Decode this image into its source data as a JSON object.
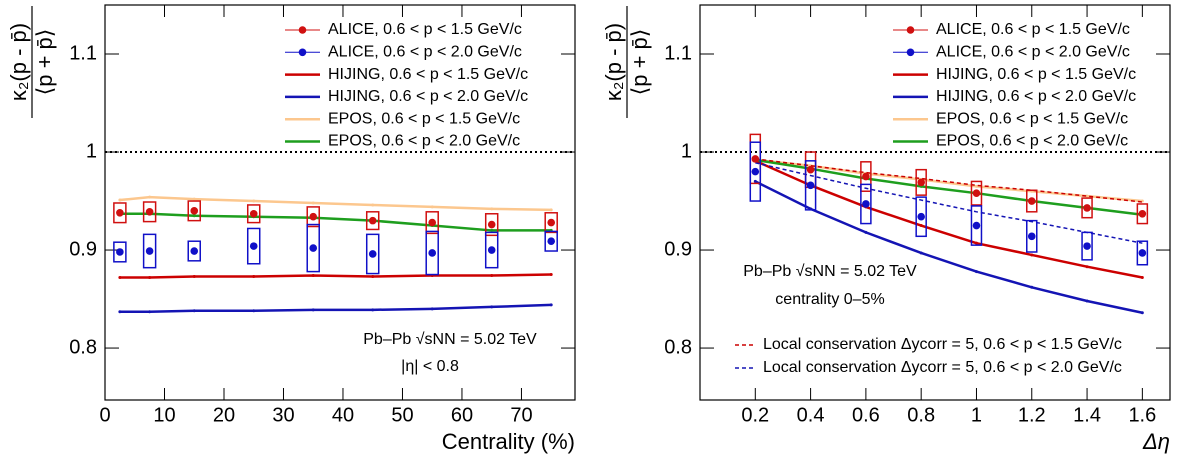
{
  "chart_data": [
    {
      "type": "line",
      "ylabel": {
        "numerator": "κ₂(p - p̄)",
        "denominator": "⟨p + p̄⟩"
      },
      "xlabel": "Centrality (%)",
      "xlim": [
        0,
        79
      ],
      "ylim": [
        0.747,
        1.15
      ],
      "xticks": [
        0,
        10,
        20,
        30,
        40,
        50,
        60,
        70
      ],
      "yticks": [
        0.8,
        0.9,
        1,
        1.1
      ],
      "hline": 1,
      "legend": "upper right",
      "annotations": [
        "Pb–Pb √sNN = 5.02 TeV",
        "|η| < 0.8"
      ],
      "x": [
        2.5,
        7.5,
        15,
        25,
        35,
        45,
        55,
        65,
        75
      ],
      "series": [
        {
          "name": "ALICE, 0.6 < p < 1.5 GeV/c",
          "color": "#d01010",
          "style": "markers",
          "values": [
            0.938,
            0.939,
            0.94,
            0.937,
            0.934,
            0.93,
            0.928,
            0.926,
            0.928
          ],
          "errors": [
            0.01,
            0.01,
            0.01,
            0.009,
            0.01,
            0.009,
            0.011,
            0.011,
            0.01
          ]
        },
        {
          "name": "ALICE, 0.6 < p < 2.0 GeV/c",
          "color": "#1010c8",
          "style": "markers",
          "values": [
            0.898,
            0.899,
            0.899,
            0.904,
            0.902,
            0.896,
            0.897,
            0.9,
            0.909
          ],
          "errors": [
            0.01,
            0.017,
            0.01,
            0.018,
            0.024,
            0.02,
            0.022,
            0.018,
            0.01
          ]
        },
        {
          "name": "HIJING, 0.6 < p < 1.5 GeV/c",
          "color": "#cc0000",
          "style": "line",
          "values": [
            0.872,
            0.872,
            0.873,
            0.873,
            0.874,
            0.873,
            0.874,
            0.874,
            0.875
          ]
        },
        {
          "name": "HIJING, 0.6 < p < 2.0 GeV/c",
          "color": "#1414b4",
          "style": "line",
          "values": [
            0.837,
            0.837,
            0.838,
            0.838,
            0.839,
            0.839,
            0.84,
            0.842,
            0.844
          ]
        },
        {
          "name": "EPOS, 0.6 < p < 1.5 GeV/c",
          "color": "#fcc78e",
          "style": "line",
          "values": [
            0.951,
            0.954,
            0.952,
            0.95,
            0.948,
            0.946,
            0.944,
            0.942,
            0.941
          ]
        },
        {
          "name": "EPOS, 0.6 < p < 2.0 GeV/c",
          "color": "#1e9e1e",
          "style": "line",
          "values": [
            0.937,
            0.937,
            0.935,
            0.934,
            0.933,
            0.93,
            0.925,
            0.92,
            0.92
          ]
        }
      ]
    },
    {
      "type": "line",
      "ylabel": {
        "numerator": "κ₂(p - p̄)",
        "denominator": "⟨p + p̄⟩"
      },
      "xlabel": "Δη",
      "xlim": [
        0,
        1.7
      ],
      "ylim": [
        0.747,
        1.15
      ],
      "xticks": [
        0.2,
        0.4,
        0.6,
        0.8,
        1,
        1.2,
        1.4,
        1.6
      ],
      "yticks": [
        0.8,
        0.9,
        1,
        1.1
      ],
      "hline": 1,
      "legend": "upper right",
      "annotations": [
        "Pb–Pb √sNN = 5.02 TeV",
        "centrality 0–5%"
      ],
      "x": [
        0.2,
        0.4,
        0.6,
        0.8,
        1,
        1.2,
        1.4,
        1.6
      ],
      "series": [
        {
          "name": "ALICE, 0.6 < p < 1.5 GeV/c",
          "color": "#d01010",
          "style": "markers",
          "values": [
            0.993,
            0.982,
            0.975,
            0.969,
            0.958,
            0.95,
            0.943,
            0.937
          ],
          "errors": [
            0.025,
            0.018,
            0.015,
            0.013,
            0.012,
            0.011,
            0.01,
            0.01
          ]
        },
        {
          "name": "ALICE, 0.6 < p < 2.0 GeV/c",
          "color": "#1010c8",
          "style": "markers",
          "values": [
            0.98,
            0.966,
            0.947,
            0.934,
            0.925,
            0.914,
            0.904,
            0.897
          ],
          "errors": [
            0.03,
            0.025,
            0.02,
            0.02,
            0.02,
            0.016,
            0.014,
            0.012
          ]
        },
        {
          "name": "HIJING, 0.6 < p < 1.5 GeV/c",
          "color": "#cc0000",
          "style": "line",
          "values": [
            0.991,
            0.966,
            0.944,
            0.925,
            0.907,
            0.895,
            0.883,
            0.872
          ]
        },
        {
          "name": "HIJING, 0.6 < p < 2.0 GeV/c",
          "color": "#1414b4",
          "style": "line",
          "values": [
            0.97,
            0.942,
            0.918,
            0.897,
            0.878,
            0.862,
            0.848,
            0.836
          ]
        },
        {
          "name": "EPOS, 0.6 < p < 1.5 GeV/c",
          "color": "#fcc78e",
          "style": "line",
          "values": [
            0.992,
            0.986,
            0.978,
            0.972,
            0.965,
            0.96,
            0.955,
            0.95
          ]
        },
        {
          "name": "EPOS, 0.6 < p < 2.0 GeV/c",
          "color": "#1e9e1e",
          "style": "line",
          "values": [
            0.992,
            0.983,
            0.973,
            0.965,
            0.958,
            0.95,
            0.943,
            0.936
          ]
        },
        {
          "name": "Local conservation Δycorr = 5, 0.6 < p < 1.5 GeV/c",
          "color": "#cc0000",
          "style": "dotted",
          "values": [
            0.993,
            0.986,
            0.979,
            0.973,
            0.966,
            0.961,
            0.955,
            0.949
          ]
        },
        {
          "name": "Local conservation Δycorr = 5, 0.6 < p < 2.0 GeV/c",
          "color": "#1414b4",
          "style": "dotted",
          "values": [
            0.989,
            0.976,
            0.963,
            0.951,
            0.939,
            0.929,
            0.918,
            0.907
          ]
        }
      ]
    }
  ]
}
